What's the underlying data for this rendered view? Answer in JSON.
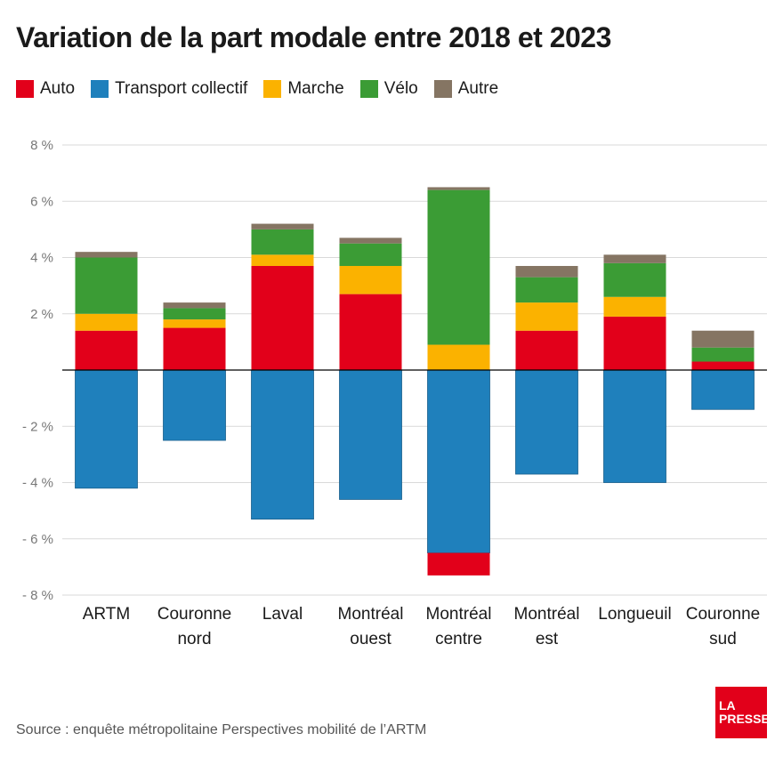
{
  "title": "Variation de la part modale entre 2018 et 2023",
  "source": "Source : enquête métropolitaine Perspectives mobilité de l’ARTM",
  "logo": {
    "line1": "LA",
    "line2": "PRESSE"
  },
  "colors": {
    "Auto": "#e2001a",
    "Transport collectif": "#1f80bc",
    "Marche": "#fbb200",
    "Vélo": "#3b9c35",
    "Autre": "#857563"
  },
  "chart_data": {
    "type": "bar",
    "stacked": true,
    "title": "Variation de la part modale entre 2018 et 2023",
    "xlabel": "",
    "ylabel": "",
    "ylim": [
      -8,
      8
    ],
    "yticks": [
      8,
      6,
      4,
      2,
      -2,
      -4,
      -6,
      -8
    ],
    "ytick_labels": [
      "8 %",
      "6 %",
      "4 %",
      "2 %",
      "- 2 %",
      "- 4 %",
      "- 6 %",
      "- 8 %"
    ],
    "grid": true,
    "legend": "top-left",
    "categories": [
      [
        "ARTM"
      ],
      [
        "Couronne",
        "nord"
      ],
      [
        "Laval"
      ],
      [
        "Montréal",
        "ouest"
      ],
      [
        "Montréal",
        "centre"
      ],
      [
        "Montréal",
        "est"
      ],
      [
        "Longueuil"
      ],
      [
        "Couronne",
        "sud"
      ]
    ],
    "series": [
      {
        "name": "Auto",
        "values": [
          1.4,
          1.5,
          3.7,
          2.7,
          -0.8,
          1.4,
          1.9,
          0.3
        ]
      },
      {
        "name": "Transport collectif",
        "values": [
          -4.2,
          -2.5,
          -5.3,
          -4.6,
          -6.5,
          -3.7,
          -4.0,
          -1.4
        ]
      },
      {
        "name": "Marche",
        "values": [
          0.6,
          0.3,
          0.4,
          1.0,
          0.9,
          1.0,
          0.7,
          0.0
        ]
      },
      {
        "name": "Vélo",
        "values": [
          2.0,
          0.4,
          0.9,
          0.8,
          5.5,
          0.9,
          1.2,
          0.5
        ]
      },
      {
        "name": "Autre",
        "values": [
          0.2,
          0.2,
          0.2,
          0.2,
          0.1,
          0.4,
          0.3,
          0.6
        ]
      }
    ]
  }
}
